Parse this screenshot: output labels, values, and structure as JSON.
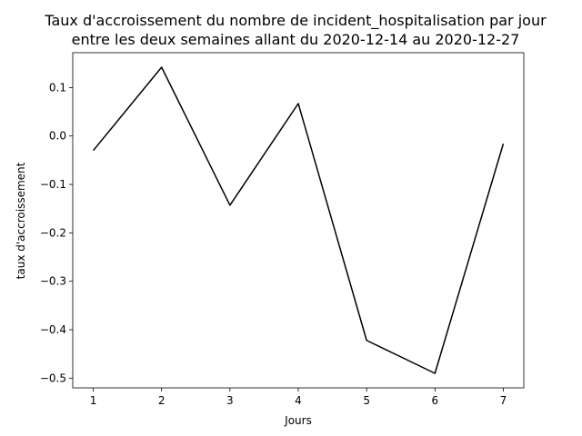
{
  "chart_data": {
    "type": "line",
    "title_lines": [
      "Taux d'accroissement du nombre de incident_hospitalisation par jour",
      "entre les deux semaines allant du 2020-12-14 au  2020-12-27"
    ],
    "xlabel": "Jours",
    "ylabel": "taux d'accroissement",
    "x": [
      1,
      2,
      3,
      4,
      5,
      6,
      7
    ],
    "y": [
      -0.03,
      0.142,
      -0.143,
      0.067,
      -0.422,
      -0.49,
      -0.016
    ],
    "xlim": [
      0.7,
      7.3
    ],
    "ylim": [
      -0.52,
      0.172
    ],
    "x_ticks": [
      1,
      2,
      3,
      4,
      5,
      6,
      7
    ],
    "y_ticks": [
      0.1,
      0.0,
      -0.1,
      -0.2,
      -0.3,
      -0.4,
      -0.5
    ],
    "y_tick_labels": [
      "0.1",
      "0.0",
      "−0.1",
      "−0.2",
      "−0.3",
      "−0.4",
      "−0.5"
    ],
    "line_color": "#000000",
    "grid": false,
    "legend": false
  }
}
